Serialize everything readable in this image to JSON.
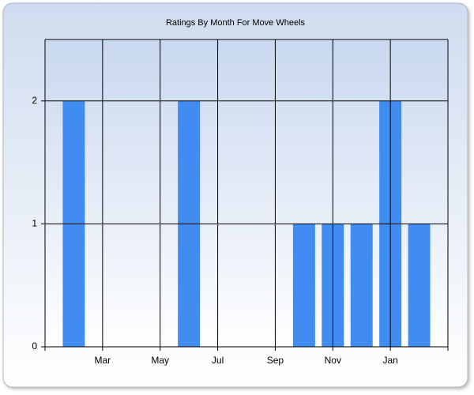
{
  "chart_data": {
    "type": "bar",
    "title": "Ratings By Month For Move Wheels",
    "categories": [
      null,
      "Mar",
      null,
      "May",
      null,
      "Jul",
      null,
      "Sep",
      null,
      "Nov",
      null,
      "Jan",
      null
    ],
    "values": [
      2,
      0,
      0,
      0,
      2,
      0,
      0,
      0,
      1,
      1,
      1,
      2,
      1
    ],
    "color": "#418cf0",
    "ylim": [
      0,
      2.5
    ],
    "yticks": [
      0,
      1,
      2
    ],
    "grid": true
  }
}
